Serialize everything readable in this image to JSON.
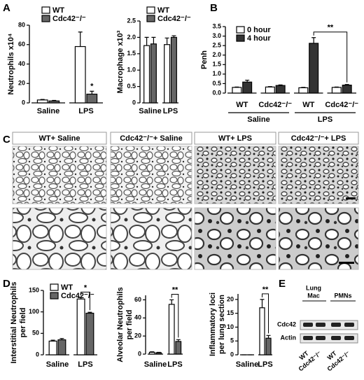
{
  "panel_labels": [
    "A",
    "B",
    "C",
    "D",
    "E"
  ],
  "chart_data": [
    {
      "type": "bar",
      "y_label": [
        "Neutrophils x10⁴"
      ],
      "categories": [
        "Saline",
        "LPS"
      ],
      "series": [
        {
          "name": "WT",
          "color": "#ffffff",
          "values": [
            3,
            58
          ],
          "errors": [
            0.5,
            15
          ]
        },
        {
          "name": "Cdc42⁻/⁻",
          "color": "#666666",
          "values": [
            2,
            9
          ],
          "errors": [
            0.5,
            3
          ]
        }
      ],
      "ylim": [
        0,
        80
      ],
      "yticks": [
        0,
        20,
        40,
        60,
        80
      ],
      "annotation": "*"
    },
    {
      "type": "bar",
      "y_label": [
        "Macrophage x10³"
      ],
      "categories": [
        "Saline",
        "LPS"
      ],
      "series": [
        {
          "name": "WT",
          "color": "#ffffff",
          "values": [
            1.75,
            1.78
          ],
          "errors": [
            0.25,
            0.2
          ]
        },
        {
          "name": "Cdc42⁻/⁻",
          "color": "#666666",
          "values": [
            1.8,
            2.0
          ],
          "errors": [
            0.2,
            0.05
          ]
        }
      ],
      "ylim": [
        0,
        2.5
      ],
      "yticks": [
        0,
        0.5,
        {
          "value": 1,
          "label": "1.0"
        },
        1.5,
        {
          "value": 2,
          "label": "2.0"
        },
        2.5
      ]
    },
    {
      "type": "bar",
      "y_label": [
        "Penh"
      ],
      "categories": [
        "WT",
        "Cdc42⁻/⁻",
        "WT",
        "Cdc42⁻/⁻"
      ],
      "group_labels": [
        "Saline",
        "LPS"
      ],
      "series": [
        {
          "name": "0 hour",
          "color": "#ffffff",
          "values": [
            0.3,
            0.32,
            0.28,
            0.3
          ],
          "errors": [
            0.02,
            0.02,
            0.02,
            0.02
          ]
        },
        {
          "name": "4 hour",
          "color": "#333333",
          "values": [
            0.58,
            0.4,
            2.62,
            0.42
          ],
          "errors": [
            0.1,
            0.03,
            0.3,
            0.03
          ]
        }
      ],
      "ylim": [
        0,
        3.5
      ],
      "yticks": [
        {
          "value": 0,
          "label": "0.0"
        },
        0.5,
        {
          "value": 1,
          "label": "1.0"
        },
        1.5,
        {
          "value": 2,
          "label": "2.0"
        },
        2.5,
        {
          "value": 3,
          "label": "3.0"
        },
        3.5
      ],
      "annotation": "**"
    },
    {
      "type": "bar",
      "y_label": [
        "Interstitial Neutrophils",
        "per field"
      ],
      "categories": [
        "Saline",
        "LPS"
      ],
      "series": [
        {
          "name": "WT",
          "color": "#ffffff",
          "values": [
            32,
            130
          ],
          "errors": [
            2,
            3
          ]
        },
        {
          "name": "Cdc42⁻/⁻",
          "color": "#666666",
          "values": [
            35,
            97
          ],
          "errors": [
            3,
            2
          ]
        }
      ],
      "ylim": [
        0,
        150
      ],
      "yticks": [
        0,
        50,
        100,
        150
      ],
      "annotation": "*"
    },
    {
      "type": "bar",
      "y_label": [
        "Alveolar Neutrophils",
        "per field"
      ],
      "categories": [
        "Saline",
        "LPS"
      ],
      "series": [
        {
          "color": "#ffffff",
          "values": [
            2,
            55
          ],
          "errors": [
            0.5,
            5
          ]
        },
        {
          "color": "#666666",
          "values": [
            1.5,
            14
          ],
          "errors": [
            0.5,
            2
          ]
        }
      ],
      "ylim": [
        0,
        65
      ],
      "yticks": [
        0,
        20,
        40,
        60
      ],
      "annotation": "**"
    },
    {
      "type": "bar",
      "y_label": [
        "Inflammatory loci",
        "per lung section"
      ],
      "categories": [
        "Saline",
        "LPS"
      ],
      "series": [
        {
          "color": "#ffffff",
          "values": [
            0,
            17
          ],
          "errors": [
            0,
            3
          ]
        },
        {
          "color": "#666666",
          "values": [
            0,
            6
          ],
          "errors": [
            0,
            1
          ]
        }
      ],
      "ylim": [
        0,
        22
      ],
      "yticks": [
        0,
        5,
        10,
        15,
        20
      ],
      "annotation": "**"
    }
  ],
  "micrographs": {
    "titles": [
      "WT+ Saline",
      "Cdc42⁻/⁻+ Saline",
      "WT+ LPS",
      "Cdc42⁻/⁻+ LPS"
    ]
  },
  "blot": {
    "groups": [
      [
        "Lung",
        "Mac"
      ],
      [
        "PMNs"
      ]
    ],
    "rows": [
      "Cdc42",
      "Actin"
    ],
    "lanes": [
      "WT",
      "Cdc42⁻/⁻",
      "WT",
      "Cdc42⁻/⁻"
    ]
  }
}
